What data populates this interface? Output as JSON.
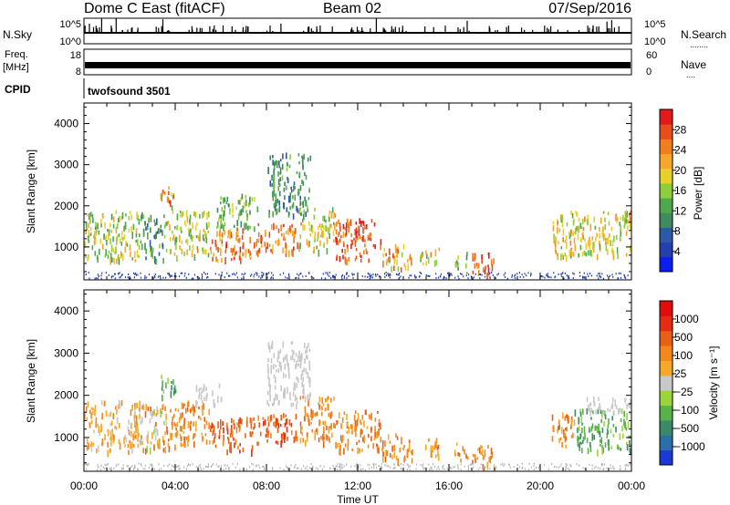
{
  "header": {
    "station": "Dome C East (fitACF)",
    "beam": "Beam 02",
    "date": "07/Sep/2016"
  },
  "strips": {
    "nsky_label": "N.Sky",
    "nsearch_label": "N.Search",
    "nsearch_dots": "........",
    "noise_ticks": [
      "10^5",
      "10^0"
    ],
    "freq_label_1": "Freq.",
    "freq_label_2": "[MHz]",
    "freq_ticks": [
      "18",
      "8"
    ],
    "nave_label": "Nave",
    "nave_dots": "....",
    "nave_ticks": [
      "60",
      "0"
    ],
    "cpid_label": "CPID",
    "cpid_value": "twofsound 3501"
  },
  "colors": {
    "power": [
      "#0a1ef0",
      "#243fae",
      "#2d5aa6",
      "#3f8a5e",
      "#4fa84b",
      "#8ccf3a",
      "#e8d02a",
      "#f7a62b",
      "#f07d1e",
      "#e84d1d",
      "#e31a1c"
    ],
    "velocity": [
      "#1a3ad8",
      "#2b6fa8",
      "#3a8a6a",
      "#58b24a",
      "#9ad63b",
      "#c8c8c8",
      "#f6a82a",
      "#f2871c",
      "#e85f18",
      "#e42b14",
      "#e10d0d"
    ],
    "ground": "#b4b4b4"
  },
  "chart_data": [
    {
      "type": "heatmap",
      "name": "power",
      "xlabel": "Time UT",
      "ylabel": "Slant Range [km]",
      "xlim": [
        0,
        24
      ],
      "ylim": [
        200,
        4500
      ],
      "xticks": [
        "00:00",
        "04:00",
        "08:00",
        "12:00",
        "16:00",
        "20:00",
        "00:00"
      ],
      "yticks": [
        "1000",
        "2000",
        "3000",
        "4000"
      ],
      "colorbar": {
        "label": "Power [dB]",
        "min": 0,
        "max": 32,
        "ticks": [
          "4",
          "8",
          "12",
          "16",
          "20",
          "24",
          "28"
        ]
      },
      "regions": [
        {
          "t": [
            0.0,
            2.6
          ],
          "r": [
            700,
            1900
          ],
          "v": [
            16,
            6
          ]
        },
        {
          "t": [
            2.6,
            3.6
          ],
          "r": [
            700,
            1800
          ],
          "v": [
            12,
            6
          ]
        },
        {
          "t": [
            3.3,
            4.0
          ],
          "r": [
            2000,
            2500
          ],
          "v": [
            22,
            8
          ]
        },
        {
          "t": [
            3.6,
            5.5
          ],
          "r": [
            800,
            1900
          ],
          "v": [
            18,
            6
          ]
        },
        {
          "t": [
            5.5,
            7.4
          ],
          "r": [
            700,
            1500
          ],
          "v": [
            24,
            6
          ]
        },
        {
          "t": [
            5.8,
            7.6
          ],
          "r": [
            1500,
            2300
          ],
          "v": [
            14,
            5
          ]
        },
        {
          "t": [
            7.4,
            9.4
          ],
          "r": [
            900,
            1600
          ],
          "v": [
            25,
            5
          ]
        },
        {
          "t": [
            8.0,
            9.9
          ],
          "r": [
            1800,
            3300
          ],
          "v": [
            11,
            4
          ]
        },
        {
          "t": [
            9.4,
            11.0
          ],
          "r": [
            900,
            2000
          ],
          "v": [
            18,
            6
          ]
        },
        {
          "t": [
            11.0,
            13.0
          ],
          "r": [
            700,
            1700
          ],
          "v": [
            27,
            4
          ]
        },
        {
          "t": [
            13.0,
            14.4
          ],
          "r": [
            500,
            1100
          ],
          "v": [
            22,
            6
          ]
        },
        {
          "t": [
            14.7,
            15.6
          ],
          "r": [
            600,
            1000
          ],
          "v": [
            18,
            6
          ]
        },
        {
          "t": [
            16.2,
            16.8
          ],
          "r": [
            500,
            900
          ],
          "v": [
            15,
            6
          ]
        },
        {
          "t": [
            17.0,
            18.0
          ],
          "r": [
            300,
            900
          ],
          "v": [
            27,
            5
          ]
        },
        {
          "t": [
            20.5,
            24.0
          ],
          "r": [
            800,
            1900
          ],
          "v": [
            19,
            6
          ]
        }
      ],
      "ground_band": {
        "r": [
          250,
          400
        ]
      }
    },
    {
      "type": "heatmap",
      "name": "velocity",
      "xlabel": "Time UT",
      "ylabel": "Slant Range [km]",
      "xlim": [
        0,
        24
      ],
      "ylim": [
        200,
        4500
      ],
      "xticks": [
        "00:00",
        "04:00",
        "08:00",
        "12:00",
        "16:00",
        "20:00",
        "00:00"
      ],
      "yticks": [
        "1000",
        "2000",
        "3000",
        "4000"
      ],
      "colorbar": {
        "label": "Velocity [m s⁻¹]",
        "ticks": [
          "1000",
          "500",
          "100",
          "25",
          "−25",
          "−100",
          "−500",
          "−1000"
        ]
      },
      "regions": [
        {
          "t": [
            0.0,
            2.6
          ],
          "r": [
            700,
            1900
          ],
          "v": [
            6,
            1
          ]
        },
        {
          "t": [
            2.6,
            3.6
          ],
          "r": [
            700,
            1800
          ],
          "v": [
            6,
            2
          ]
        },
        {
          "t": [
            3.3,
            4.0
          ],
          "r": [
            2000,
            2500
          ],
          "v": [
            3,
            1
          ]
        },
        {
          "t": [
            3.6,
            5.5
          ],
          "r": [
            800,
            1900
          ],
          "v": [
            7,
            1
          ]
        },
        {
          "t": [
            4.8,
            6.0
          ],
          "r": [
            1800,
            2300
          ],
          "v": [
            5,
            0
          ]
        },
        {
          "t": [
            5.5,
            7.4
          ],
          "r": [
            700,
            1500
          ],
          "v": [
            8,
            1
          ]
        },
        {
          "t": [
            7.4,
            9.4
          ],
          "r": [
            900,
            1600
          ],
          "v": [
            8,
            1
          ]
        },
        {
          "t": [
            8.0,
            9.9
          ],
          "r": [
            1800,
            3300
          ],
          "v": [
            5,
            0
          ]
        },
        {
          "t": [
            9.4,
            11.0
          ],
          "r": [
            900,
            2000
          ],
          "v": [
            7,
            1
          ]
        },
        {
          "t": [
            11.0,
            13.0
          ],
          "r": [
            700,
            1700
          ],
          "v": [
            7,
            1
          ]
        },
        {
          "t": [
            13.0,
            14.4
          ],
          "r": [
            500,
            1100
          ],
          "v": [
            7,
            1
          ]
        },
        {
          "t": [
            14.7,
            15.6
          ],
          "r": [
            600,
            1000
          ],
          "v": [
            7,
            1
          ]
        },
        {
          "t": [
            16.2,
            16.8
          ],
          "r": [
            500,
            900
          ],
          "v": [
            7,
            1
          ]
        },
        {
          "t": [
            17.0,
            18.0
          ],
          "r": [
            300,
            900
          ],
          "v": [
            7,
            1
          ]
        },
        {
          "t": [
            20.5,
            21.5
          ],
          "r": [
            800,
            1600
          ],
          "v": [
            7,
            1
          ]
        },
        {
          "t": [
            21.5,
            24.0
          ],
          "r": [
            700,
            1700
          ],
          "v": [
            3,
            1
          ]
        },
        {
          "t": [
            22.0,
            24.0
          ],
          "r": [
            1600,
            2000
          ],
          "v": [
            5,
            0
          ]
        }
      ],
      "ground_band": {
        "r": [
          250,
          400
        ]
      }
    }
  ]
}
